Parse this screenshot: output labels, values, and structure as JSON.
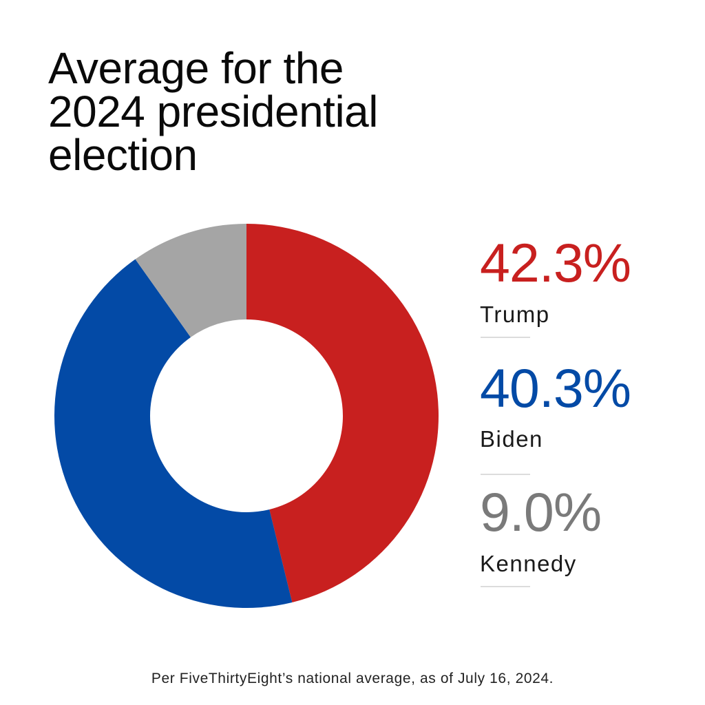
{
  "title_lines": [
    "Average for the",
    "2024 presidential",
    "election"
  ],
  "footer": "Per FiveThirtyEight’s national average, as of July 16, 2024.",
  "legend": [
    {
      "value_label": "42.3%",
      "name": "Trump",
      "color": "#C8201F"
    },
    {
      "value_label": "40.3%",
      "name": "Biden",
      "color": "#034AA6"
    },
    {
      "value_label": "9.0%",
      "name": "Kennedy",
      "color": "#7A7A7A"
    }
  ],
  "chart_data": {
    "type": "pie",
    "variant": "donut",
    "title": "Average for the 2024 presidential election",
    "categories": [
      "Trump",
      "Biden",
      "Kennedy"
    ],
    "values": [
      42.3,
      40.3,
      9.0
    ],
    "unit": "%",
    "colors": [
      "#C8201F",
      "#034AA6",
      "#A5A5A5"
    ],
    "start": "top",
    "direction": "clockwise",
    "normalized_to_total": true,
    "legend_position": "right",
    "source_note": "Per FiveThirtyEight’s national average, as of July 16, 2024."
  }
}
